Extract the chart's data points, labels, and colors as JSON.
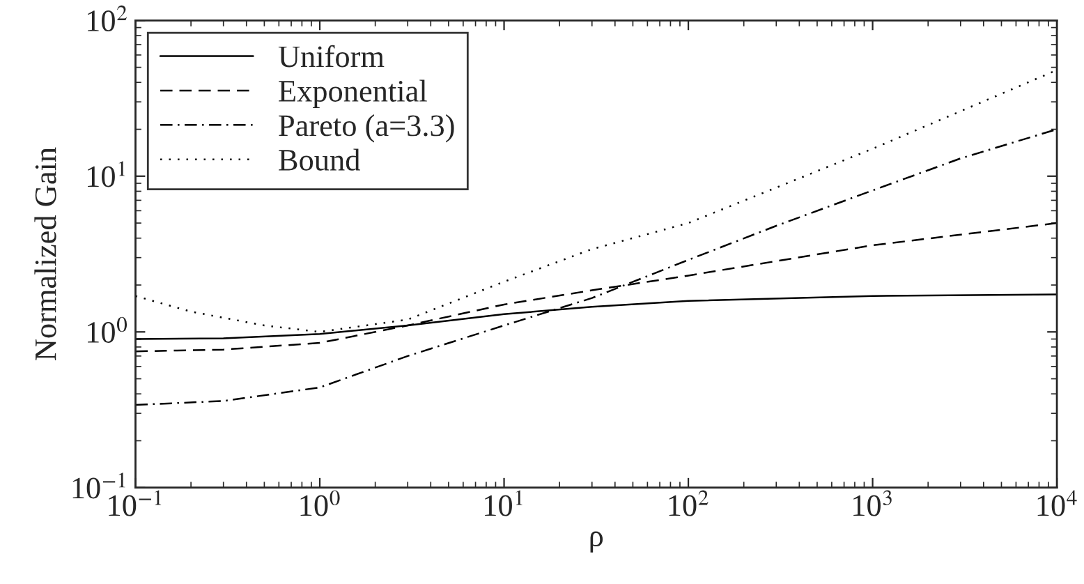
{
  "chart_data": {
    "type": "line",
    "xlabel": "ρ",
    "ylabel": "Normalized Gain",
    "log": "xy",
    "xlim": [
      0.1,
      10000
    ],
    "ylim": [
      0.1,
      100
    ],
    "xticks": [
      {
        "value": 0.1,
        "label": "10$^{−1}$"
      },
      {
        "value": 1,
        "label": "10$^{0}$"
      },
      {
        "value": 10,
        "label": "10$^{1}$"
      },
      {
        "value": 100,
        "label": "10$^{2}$"
      },
      {
        "value": 1000,
        "label": "10$^{3}$"
      },
      {
        "value": 10000,
        "label": "10$^{4}$"
      }
    ],
    "yticks": [
      {
        "value": 0.1,
        "label": "10$^{−1}$"
      },
      {
        "value": 1,
        "label": "10$^{0}$"
      },
      {
        "value": 10,
        "label": "10$^{1}$"
      },
      {
        "value": 100,
        "label": "10$^{2}$"
      }
    ],
    "grid": false,
    "legend": "top left",
    "marker": "none",
    "series": [
      {
        "name": "Uniform",
        "color": "#000000",
        "line_style": "solid",
        "x": [
          0.1,
          0.3,
          1,
          3,
          10,
          30,
          100,
          1000,
          10000
        ],
        "values": [
          0.9,
          0.91,
          0.97,
          1.1,
          1.3,
          1.45,
          1.58,
          1.7,
          1.74
        ]
      },
      {
        "name": "Exponential",
        "color": "#000000",
        "line_style": "dashed",
        "x": [
          0.1,
          0.3,
          1,
          3,
          10,
          30,
          100,
          1000,
          10000
        ],
        "values": [
          0.75,
          0.77,
          0.85,
          1.1,
          1.5,
          1.85,
          2.3,
          3.6,
          5.0
        ]
      },
      {
        "name": "Pareto (a=3.3)",
        "color": "#000000",
        "line_style": "dashdot",
        "x": [
          0.1,
          0.3,
          1,
          3,
          10,
          30,
          100,
          300,
          1000,
          3000,
          10000
        ],
        "values": [
          0.34,
          0.36,
          0.44,
          0.7,
          1.1,
          1.65,
          2.9,
          4.8,
          8.1,
          13,
          20
        ]
      },
      {
        "name": "Bound",
        "color": "#000000",
        "line_style": "dotted",
        "x": [
          0.1,
          0.2,
          0.5,
          1,
          3,
          10,
          30,
          100,
          1000,
          10000
        ],
        "values": [
          1.7,
          1.35,
          1.1,
          1.0,
          1.2,
          2.1,
          3.4,
          5.0,
          15,
          48
        ]
      }
    ]
  }
}
